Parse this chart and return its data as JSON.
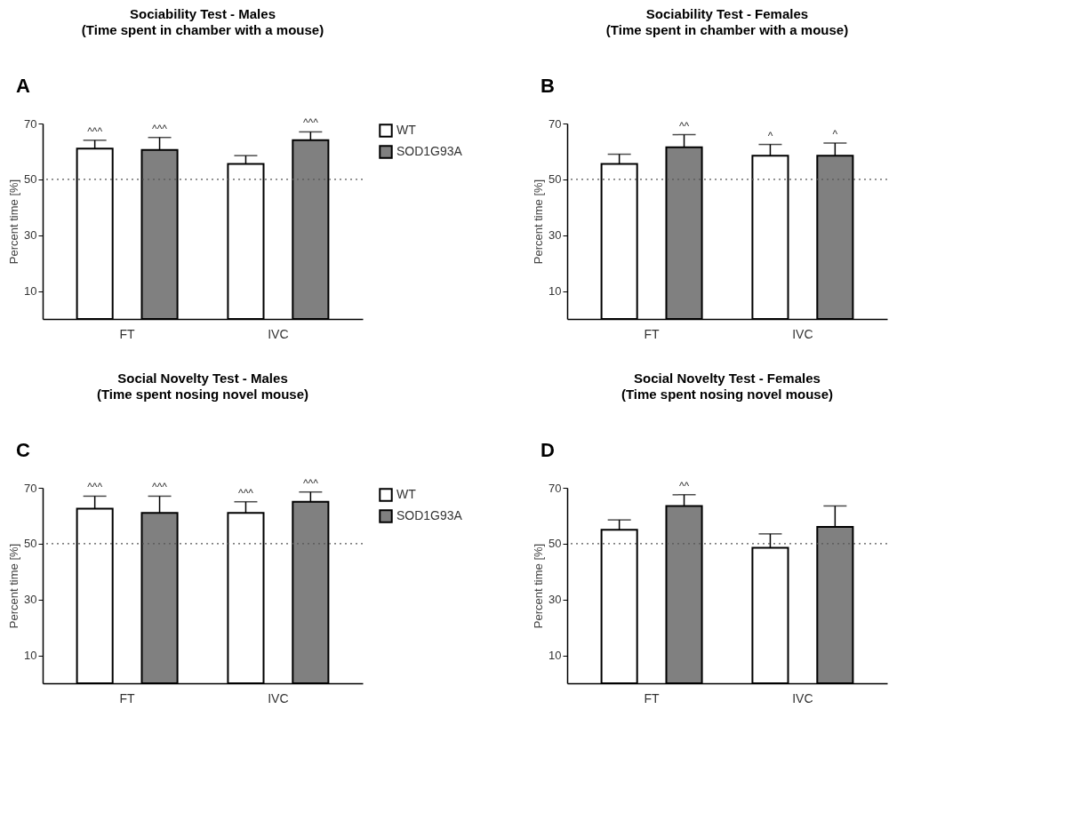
{
  "chart_data": [
    {
      "type": "bar",
      "title": "Sociability Test - Males",
      "subtitle": "(Time spent in chamber with a mouse)",
      "ylabel": "Percent time [%]",
      "annotations": [
        "A"
      ],
      "categories": [
        "FT",
        "IVC"
      ],
      "series": [
        {
          "name": "WT",
          "color": "#ffffff",
          "values": [
            61,
            55.5
          ],
          "errors": [
            3,
            3
          ],
          "value_labels": [
            "^^^",
            null
          ]
        },
        {
          "name": "SOD1G93A",
          "color": "#808080",
          "values": [
            60.5,
            64
          ],
          "errors": [
            4.5,
            3
          ],
          "value_labels": [
            "^^^",
            "^^^"
          ]
        }
      ],
      "ylim": [
        0,
        70
      ],
      "yticks": [
        10,
        30,
        50,
        70
      ],
      "ref_lines": [
        {
          "axis": "y",
          "value": 50,
          "line_style": "dotted"
        }
      ],
      "legend": "right",
      "grid": false
    },
    {
      "type": "bar",
      "title": "Sociability Test - Females",
      "subtitle": "(Time spent in chamber with a mouse)",
      "ylabel": "Percent time [%]",
      "annotations": [
        "B"
      ],
      "categories": [
        "FT",
        "IVC"
      ],
      "series": [
        {
          "color": "#ffffff",
          "values": [
            55.5,
            58.5
          ],
          "errors": [
            3.5,
            4
          ],
          "value_labels": [
            null,
            "^"
          ]
        },
        {
          "color": "#808080",
          "values": [
            61.5,
            58.5
          ],
          "errors": [
            4.5,
            4.5
          ],
          "value_labels": [
            "^^",
            "^"
          ]
        }
      ],
      "ylim": [
        0,
        70
      ],
      "yticks": [
        10,
        30,
        50,
        70
      ],
      "ref_lines": [
        {
          "axis": "y",
          "value": 50,
          "line_style": "dotted"
        }
      ],
      "legend": false,
      "grid": false
    },
    {
      "type": "bar",
      "title": "Social Novelty Test - Males",
      "subtitle": "(Time spent nosing novel mouse)",
      "ylabel": "Percent time [%]",
      "annotations": [
        "C"
      ],
      "categories": [
        "FT",
        "IVC"
      ],
      "series": [
        {
          "name": "WT",
          "color": "#ffffff",
          "values": [
            62.5,
            61
          ],
          "errors": [
            4.5,
            4
          ],
          "value_labels": [
            "^^^",
            "^^^"
          ]
        },
        {
          "name": "SOD1G93A",
          "color": "#808080",
          "values": [
            61,
            65
          ],
          "errors": [
            6,
            3.5
          ],
          "value_labels": [
            "^^^",
            "^^^"
          ]
        }
      ],
      "ylim": [
        0,
        70
      ],
      "yticks": [
        10,
        30,
        50,
        70
      ],
      "ref_lines": [
        {
          "axis": "y",
          "value": 50,
          "line_style": "dotted"
        }
      ],
      "legend": "right",
      "grid": false
    },
    {
      "type": "bar",
      "title": "Social Novelty Test - Females",
      "subtitle": "(Time spent nosing novel mouse)",
      "ylabel": "Percent time [%]",
      "annotations": [
        "D"
      ],
      "categories": [
        "FT",
        "IVC"
      ],
      "series": [
        {
          "color": "#ffffff",
          "values": [
            55,
            48.5
          ],
          "errors": [
            3.5,
            5
          ],
          "value_labels": [
            null,
            null
          ]
        },
        {
          "color": "#808080",
          "values": [
            63.5,
            56
          ],
          "errors": [
            4,
            7.5
          ],
          "value_labels": [
            "^^",
            null
          ]
        }
      ],
      "ylim": [
        0,
        70
      ],
      "yticks": [
        10,
        30,
        50,
        70
      ],
      "ref_lines": [
        {
          "axis": "y",
          "value": 50,
          "line_style": "dotted"
        }
      ],
      "legend": false,
      "grid": false
    }
  ]
}
